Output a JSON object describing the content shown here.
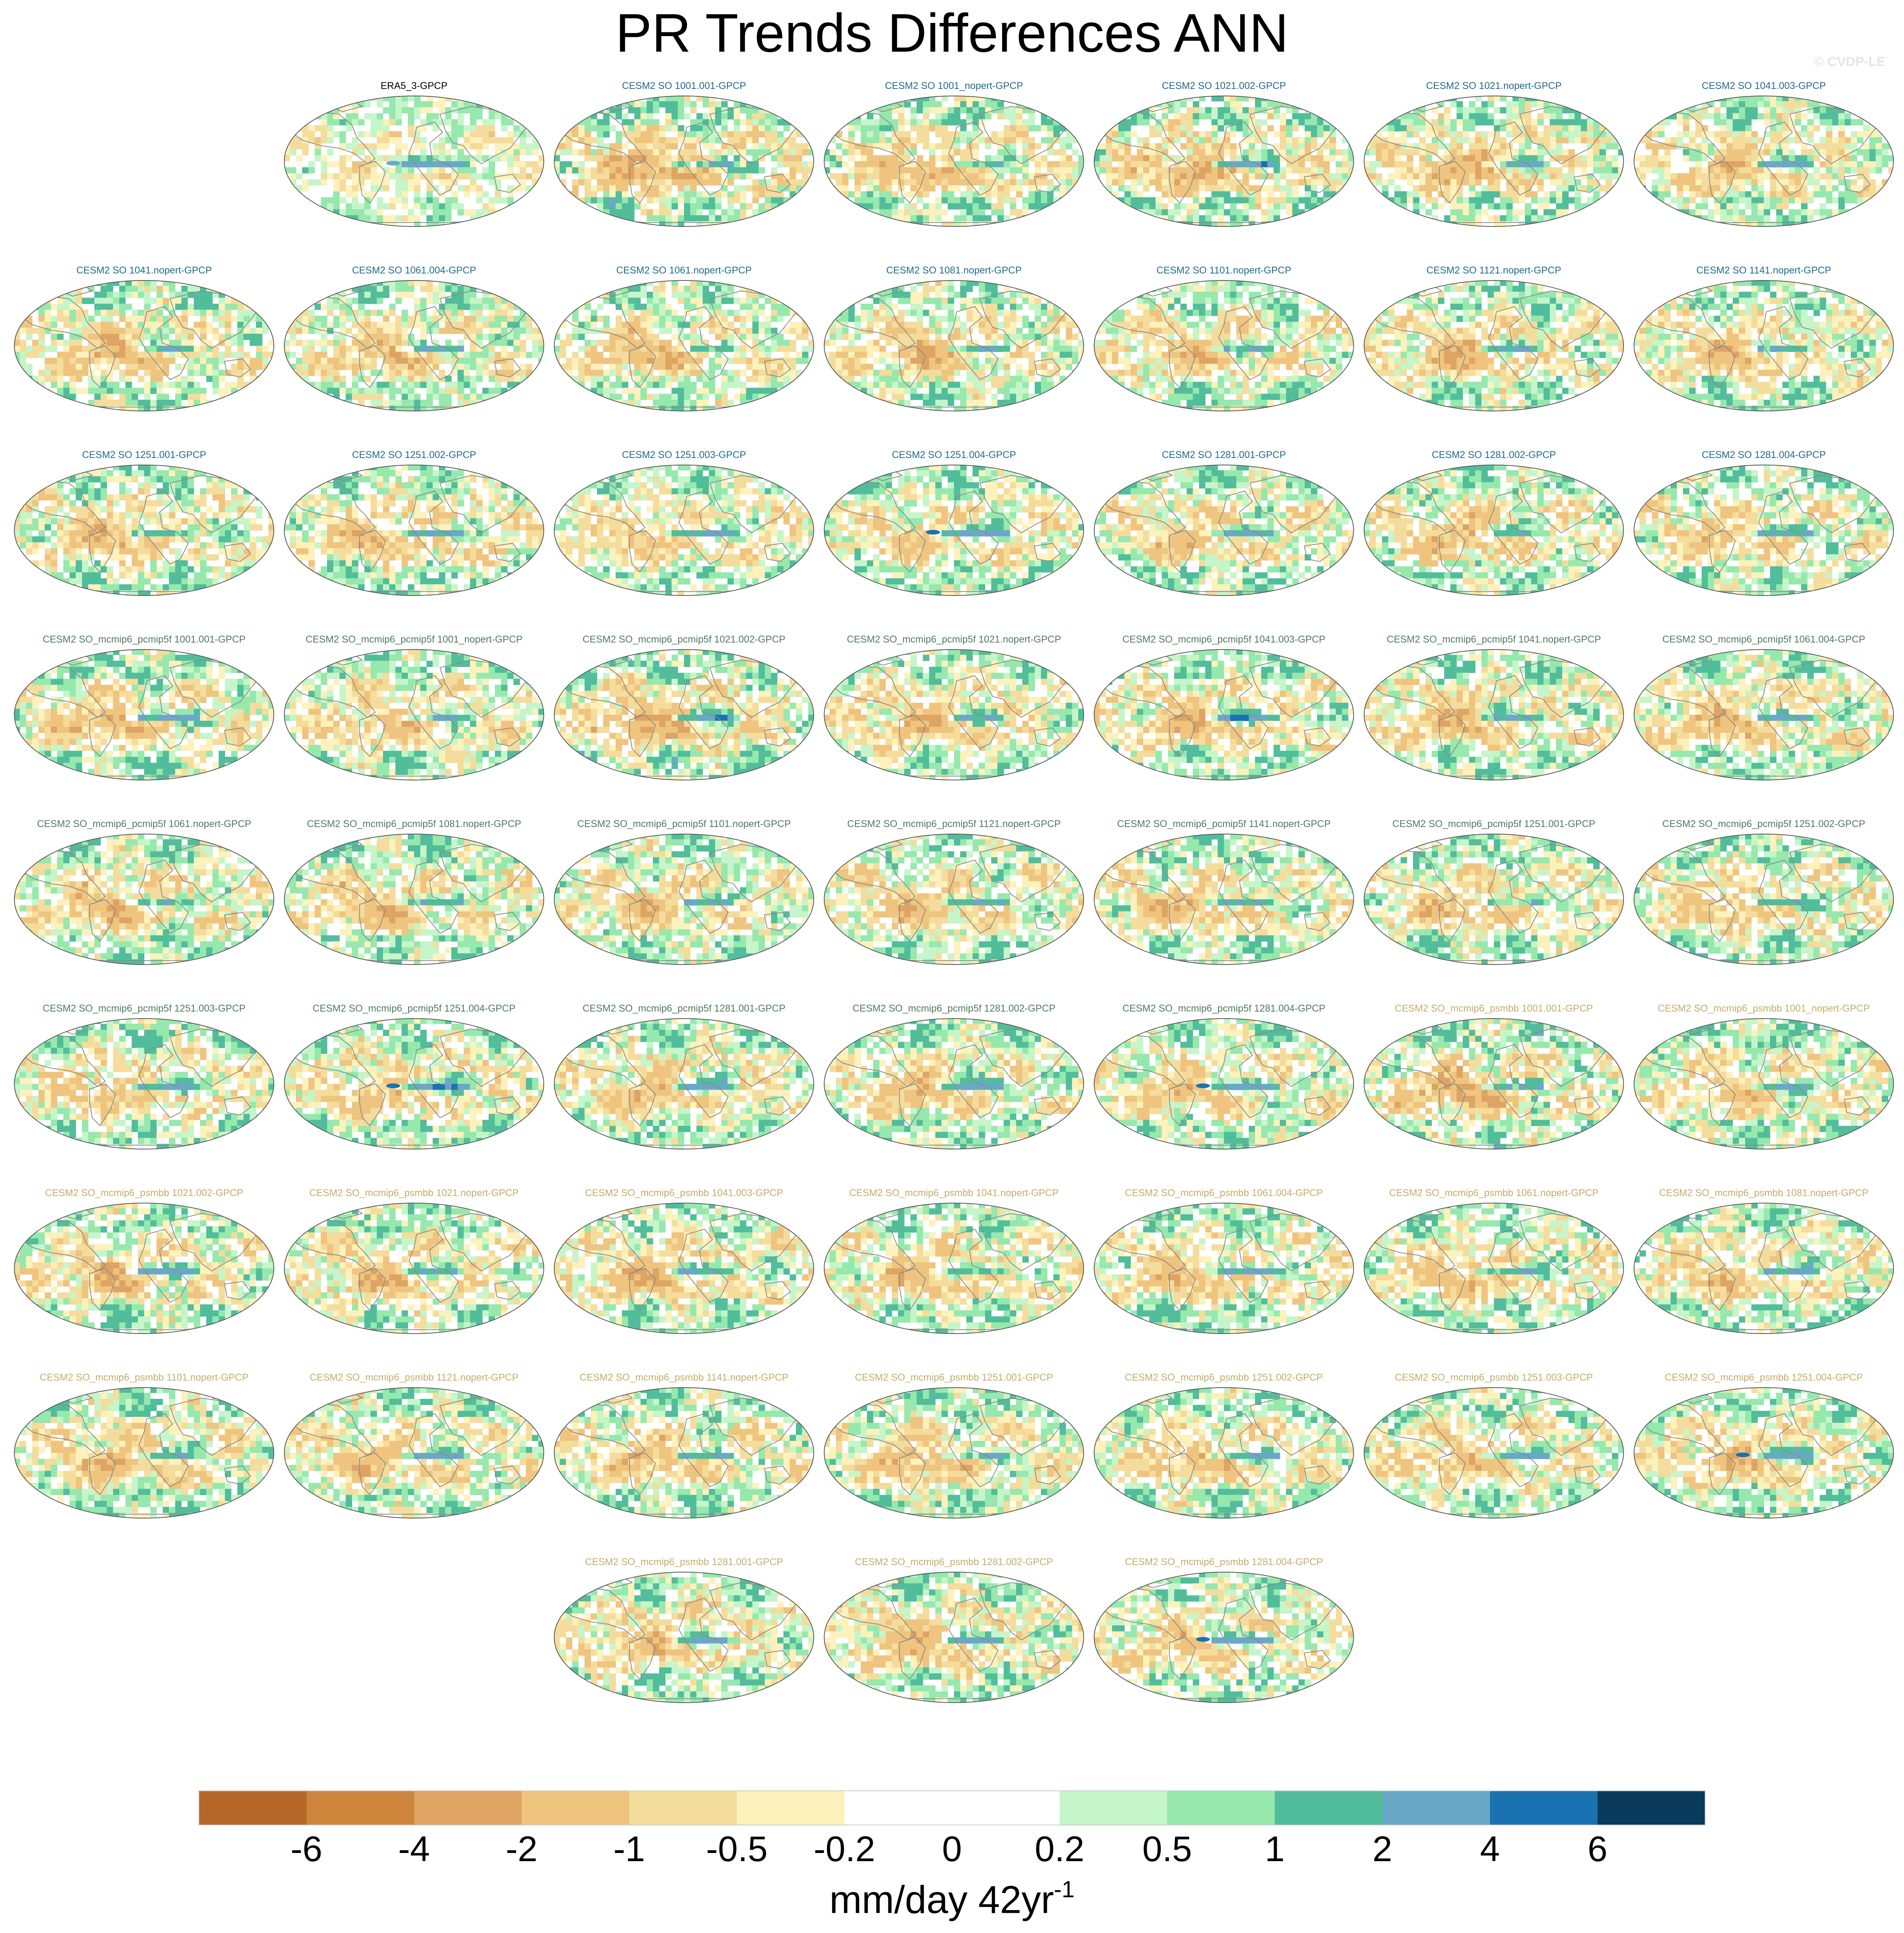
{
  "figure": {
    "title": "PR Trends Differences ANN",
    "watermark": "© CVDP-LE",
    "units_text": "mm/day 42yr",
    "units_superscript": "-1"
  },
  "colors": {
    "label_era": "#000000",
    "label_so": "#1f6b8c",
    "label_pcmip": "#4f7a5e",
    "label_psmbb": "#c2ad6a",
    "land_outline": "#8a8a8a",
    "ocean_background": "#ffffff"
  },
  "chart_data": {
    "type": "heatmap",
    "variable": "PR trend difference",
    "season": "ANN",
    "colorbar": {
      "levels": [
        "-6",
        "-4",
        "-2",
        "-1",
        "-0.5",
        "-0.2",
        "0",
        "0.2",
        "0.5",
        "1",
        "2",
        "4",
        "6"
      ],
      "colors": [
        "#b5672a",
        "#cc853b",
        "#dea463",
        "#efc47f",
        "#f4dc9c",
        "#fdf1bc",
        "#ffffff",
        "#ffffff",
        "#c6f5c9",
        "#96e8ad",
        "#52bd9a",
        "#6aa8c7",
        "#1a72b0",
        "#0a3a5c"
      ],
      "units": "mm/day 42yr-1"
    },
    "panels": [
      {
        "label": "ERA5_3-GPCP",
        "group": "era",
        "amp": 0.55,
        "wp": -0.4,
        "ep": 2.2,
        "peak": 3
      },
      {
        "label": "CESM2 SO 1001.001-GPCP",
        "group": "so",
        "amp": 0.9,
        "wp": -2.2,
        "ep": 1.6,
        "peak": 0
      },
      {
        "label": "CESM2 SO 1001_nopert-GPCP",
        "group": "so",
        "amp": 0.8,
        "wp": -1.8,
        "ep": 1.2,
        "peak": 0
      },
      {
        "label": "CESM2 SO 1021.002-GPCP",
        "group": "so",
        "amp": 0.9,
        "wp": -2.0,
        "ep": 2.2,
        "peak": 0
      },
      {
        "label": "CESM2 SO 1021.nopert-GPCP",
        "group": "so",
        "amp": 0.8,
        "wp": -1.8,
        "ep": 1.4,
        "peak": 0
      },
      {
        "label": "CESM2 SO 1041.003-GPCP",
        "group": "so",
        "amp": 0.8,
        "wp": -1.5,
        "ep": 2.2,
        "peak": 0
      },
      {
        "label": "CESM2 SO 1041.nopert-GPCP",
        "group": "so",
        "amp": 0.8,
        "wp": -1.7,
        "ep": 1.3,
        "peak": 0
      },
      {
        "label": "CESM2 SO 1061.004-GPCP",
        "group": "so",
        "amp": 0.8,
        "wp": -1.6,
        "ep": 1.6,
        "peak": 0
      },
      {
        "label": "CESM2 SO 1061.nopert-GPCP",
        "group": "so",
        "amp": 0.8,
        "wp": -1.8,
        "ep": 1.2,
        "peak": 0
      },
      {
        "label": "CESM2 SO 1081.nopert-GPCP",
        "group": "so",
        "amp": 0.8,
        "wp": -1.7,
        "ep": 1.3,
        "peak": 0
      },
      {
        "label": "CESM2 SO 1101.nopert-GPCP",
        "group": "so",
        "amp": 0.8,
        "wp": -1.6,
        "ep": 1.4,
        "peak": 0
      },
      {
        "label": "CESM2 SO 1121.nopert-GPCP",
        "group": "so",
        "amp": 0.8,
        "wp": -1.9,
        "ep": 1.5,
        "peak": 0
      },
      {
        "label": "CESM2 SO 1141.nopert-GPCP",
        "group": "so",
        "amp": 0.8,
        "wp": -1.6,
        "ep": 1.3,
        "peak": 0
      },
      {
        "label": "CESM2 SO 1251.001-GPCP",
        "group": "so",
        "amp": 0.8,
        "wp": -1.7,
        "ep": 1.4,
        "peak": 0
      },
      {
        "label": "CESM2 SO 1251.002-GPCP",
        "group": "so",
        "amp": 0.8,
        "wp": -1.6,
        "ep": 2.0,
        "peak": 0
      },
      {
        "label": "CESM2 SO 1251.003-GPCP",
        "group": "so",
        "amp": 0.7,
        "wp": -1.2,
        "ep": 1.8,
        "peak": 0
      },
      {
        "label": "CESM2 SO 1251.004-GPCP",
        "group": "so",
        "amp": 0.8,
        "wp": -1.0,
        "ep": 2.4,
        "peak": 4
      },
      {
        "label": "CESM2 SO 1281.001-GPCP",
        "group": "so",
        "amp": 0.8,
        "wp": -1.3,
        "ep": 1.6,
        "peak": 0
      },
      {
        "label": "CESM2 SO 1281.002-GPCP",
        "group": "so",
        "amp": 0.8,
        "wp": -1.5,
        "ep": 1.4,
        "peak": 0
      },
      {
        "label": "CESM2 SO 1281.004-GPCP",
        "group": "so",
        "amp": 0.8,
        "wp": -1.3,
        "ep": 2.0,
        "peak": 0
      },
      {
        "label": "CESM2 SO_mcmip6_pcmip5f 1001.001-GPCP",
        "group": "pcmip",
        "amp": 0.8,
        "wp": -1.8,
        "ep": 2.3,
        "peak": 0
      },
      {
        "label": "CESM2 SO_mcmip6_pcmip5f 1001_nopert-GPCP",
        "group": "pcmip",
        "amp": 0.8,
        "wp": -1.2,
        "ep": 1.2,
        "peak": 0
      },
      {
        "label": "CESM2 SO_mcmip6_pcmip5f 1021.002-GPCP",
        "group": "pcmip",
        "amp": 0.9,
        "wp": -2.2,
        "ep": 2.3,
        "peak": 0
      },
      {
        "label": "CESM2 SO_mcmip6_pcmip5f 1021.nopert-GPCP",
        "group": "pcmip",
        "amp": 0.8,
        "wp": -1.4,
        "ep": 1.3,
        "peak": 0
      },
      {
        "label": "CESM2 SO_mcmip6_pcmip5f 1041.003-GPCP",
        "group": "pcmip",
        "amp": 0.8,
        "wp": -1.5,
        "ep": 2.3,
        "peak": 0
      },
      {
        "label": "CESM2 SO_mcmip6_pcmip5f 1041.nopert-GPCP",
        "group": "pcmip",
        "amp": 0.8,
        "wp": -1.5,
        "ep": 1.5,
        "peak": 0
      },
      {
        "label": "CESM2 SO_mcmip6_pcmip5f 1061.004-GPCP",
        "group": "pcmip",
        "amp": 0.8,
        "wp": -1.6,
        "ep": 2.1,
        "peak": 0
      },
      {
        "label": "CESM2 SO_mcmip6_pcmip5f 1061.nopert-GPCP",
        "group": "pcmip",
        "amp": 0.8,
        "wp": -1.7,
        "ep": 1.5,
        "peak": 0
      },
      {
        "label": "CESM2 SO_mcmip6_pcmip5f 1081.nopert-GPCP",
        "group": "pcmip",
        "amp": 0.8,
        "wp": -1.6,
        "ep": 1.6,
        "peak": 0
      },
      {
        "label": "CESM2 SO_mcmip6_pcmip5f 1101.nopert-GPCP",
        "group": "pcmip",
        "amp": 0.8,
        "wp": -1.5,
        "ep": 1.5,
        "peak": 0
      },
      {
        "label": "CESM2 SO_mcmip6_pcmip5f 1121.nopert-GPCP",
        "group": "pcmip",
        "amp": 0.8,
        "wp": -1.5,
        "ep": 1.7,
        "peak": 0
      },
      {
        "label": "CESM2 SO_mcmip6_pcmip5f 1141.nopert-GPCP",
        "group": "pcmip",
        "amp": 0.8,
        "wp": -1.4,
        "ep": 1.6,
        "peak": 0
      },
      {
        "label": "CESM2 SO_mcmip6_pcmip5f 1251.001-GPCP",
        "group": "pcmip",
        "amp": 0.8,
        "wp": -1.5,
        "ep": 1.5,
        "peak": 0
      },
      {
        "label": "CESM2 SO_mcmip6_pcmip5f 1251.002-GPCP",
        "group": "pcmip",
        "amp": 0.8,
        "wp": -1.5,
        "ep": 1.6,
        "peak": 0
      },
      {
        "label": "CESM2 SO_mcmip6_pcmip5f 1251.003-GPCP",
        "group": "pcmip",
        "amp": 0.8,
        "wp": -1.4,
        "ep": 2.2,
        "peak": 0
      },
      {
        "label": "CESM2 SO_mcmip6_pcmip5f 1251.004-GPCP",
        "group": "pcmip",
        "amp": 0.8,
        "wp": -1.2,
        "ep": 2.4,
        "peak": 4
      },
      {
        "label": "CESM2 SO_mcmip6_pcmip5f 1281.001-GPCP",
        "group": "pcmip",
        "amp": 0.8,
        "wp": -1.4,
        "ep": 2.2,
        "peak": 0
      },
      {
        "label": "CESM2 SO_mcmip6_pcmip5f 1281.002-GPCP",
        "group": "pcmip",
        "amp": 0.8,
        "wp": -1.4,
        "ep": 2.2,
        "peak": 0
      },
      {
        "label": "CESM2 SO_mcmip6_pcmip5f 1281.004-GPCP",
        "group": "pcmip",
        "amp": 0.8,
        "wp": -1.5,
        "ep": 2.4,
        "peak": 5
      },
      {
        "label": "CESM2 SO_mcmip6_psmbb 1001.001-GPCP",
        "group": "psmbb",
        "amp": 0.9,
        "wp": -2.2,
        "ep": 1.6,
        "peak": 0
      },
      {
        "label": "CESM2 SO_mcmip6_psmbb 1001_nopert-GPCP",
        "group": "psmbb",
        "amp": 0.8,
        "wp": -1.4,
        "ep": 1.6,
        "peak": 0
      },
      {
        "label": "CESM2 SO_mcmip6_psmbb 1021.002-GPCP",
        "group": "psmbb",
        "amp": 0.8,
        "wp": -1.7,
        "ep": 2.2,
        "peak": 0
      },
      {
        "label": "CESM2 SO_mcmip6_psmbb 1021.nopert-GPCP",
        "group": "psmbb",
        "amp": 0.8,
        "wp": -1.6,
        "ep": 1.5,
        "peak": 0
      },
      {
        "label": "CESM2 SO_mcmip6_psmbb 1041.003-GPCP",
        "group": "psmbb",
        "amp": 0.8,
        "wp": -1.8,
        "ep": 1.8,
        "peak": 0
      },
      {
        "label": "CESM2 SO_mcmip6_psmbb 1041.nopert-GPCP",
        "group": "psmbb",
        "amp": 0.8,
        "wp": -1.5,
        "ep": 1.6,
        "peak": 0
      },
      {
        "label": "CESM2 SO_mcmip6_psmbb 1061.004-GPCP",
        "group": "psmbb",
        "amp": 0.8,
        "wp": -1.6,
        "ep": 2.0,
        "peak": 0
      },
      {
        "label": "CESM2 SO_mcmip6_psmbb 1061.nopert-GPCP",
        "group": "psmbb",
        "amp": 0.8,
        "wp": -1.5,
        "ep": 1.8,
        "peak": 0
      },
      {
        "label": "CESM2 SO_mcmip6_psmbb 1081.nopert-GPCP",
        "group": "psmbb",
        "amp": 0.8,
        "wp": -1.4,
        "ep": 2.0,
        "peak": 0
      },
      {
        "label": "CESM2 SO_mcmip6_psmbb 1101.nopert-GPCP",
        "group": "psmbb",
        "amp": 0.8,
        "wp": -1.6,
        "ep": 1.4,
        "peak": 0
      },
      {
        "label": "CESM2 SO_mcmip6_psmbb 1121.nopert-GPCP",
        "group": "psmbb",
        "amp": 0.8,
        "wp": -1.5,
        "ep": 2.1,
        "peak": 0
      },
      {
        "label": "CESM2 SO_mcmip6_psmbb 1141.nopert-GPCP",
        "group": "psmbb",
        "amp": 0.8,
        "wp": -1.6,
        "ep": 1.5,
        "peak": 0
      },
      {
        "label": "CESM2 SO_mcmip6_psmbb 1251.001-GPCP",
        "group": "psmbb",
        "amp": 0.8,
        "wp": -1.5,
        "ep": 1.4,
        "peak": 0
      },
      {
        "label": "CESM2 SO_mcmip6_psmbb 1251.002-GPCP",
        "group": "psmbb",
        "amp": 0.8,
        "wp": -1.6,
        "ep": 1.8,
        "peak": 0
      },
      {
        "label": "CESM2 SO_mcmip6_psmbb 1251.003-GPCP",
        "group": "psmbb",
        "amp": 0.8,
        "wp": -1.4,
        "ep": 1.8,
        "peak": 0
      },
      {
        "label": "CESM2 SO_mcmip6_psmbb 1251.004-GPCP",
        "group": "psmbb",
        "amp": 0.8,
        "wp": -1.5,
        "ep": 2.2,
        "peak": 5
      },
      {
        "label": "CESM2 SO_mcmip6_psmbb 1281.001-GPCP",
        "group": "psmbb",
        "amp": 0.8,
        "wp": -1.4,
        "ep": 1.6,
        "peak": 0
      },
      {
        "label": "CESM2 SO_mcmip6_psmbb 1281.002-GPCP",
        "group": "psmbb",
        "amp": 0.8,
        "wp": -1.5,
        "ep": 1.6,
        "peak": 0
      },
      {
        "label": "CESM2 SO_mcmip6_psmbb 1281.004-GPCP",
        "group": "psmbb",
        "amp": 0.8,
        "wp": -1.3,
        "ep": 2.2,
        "peak": 5
      }
    ]
  }
}
